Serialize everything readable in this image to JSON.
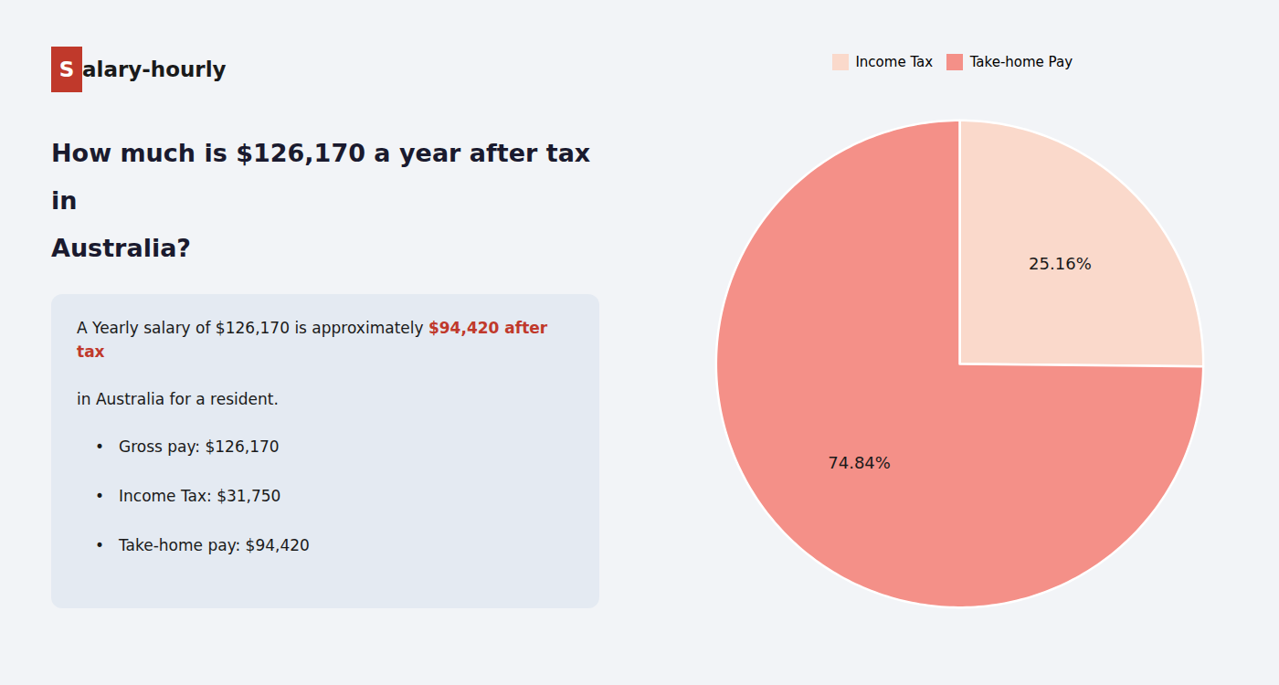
{
  "chart_data": {
    "type": "pie",
    "title": [
      "How much is $126,170 a year after tax in",
      "Australia?"
    ],
    "title_color": "#1a1a2e",
    "annotations": [
      [
        {
          "text": "S",
          "color": "#ffffff",
          "background": "#c0392b"
        },
        {
          "text": "alary-hourly",
          "color": "#1a1a1a"
        }
      ],
      [
        {
          "text": "A Yearly salary of $126,170 is approximately ",
          "color": "#1a1a1a"
        },
        {
          "text": "$94,420 after tax",
          "color": "#c0392b",
          "bold": true
        }
      ],
      [
        {
          "text": "in Australia for a resident.",
          "color": "#1a1a1a"
        }
      ],
      [
        {
          "bullet": "•",
          "text": "Gross pay: $126,170",
          "color": "#1a1a1a"
        }
      ],
      [
        {
          "bullet": "•",
          "text": "Income Tax: $31,750",
          "color": "#1a1a1a"
        }
      ],
      [
        {
          "bullet": "•",
          "text": "Take-home pay: $94,420",
          "color": "#1a1a1a"
        }
      ]
    ],
    "categories": [
      "Income Tax",
      "Take-home Pay"
    ],
    "values": [
      25.16,
      74.84
    ],
    "value_labels": [
      "25.16%",
      "74.84%"
    ],
    "colors": [
      "#fad9cb",
      "#f49088"
    ],
    "data_labels": true,
    "legend": "top"
  }
}
